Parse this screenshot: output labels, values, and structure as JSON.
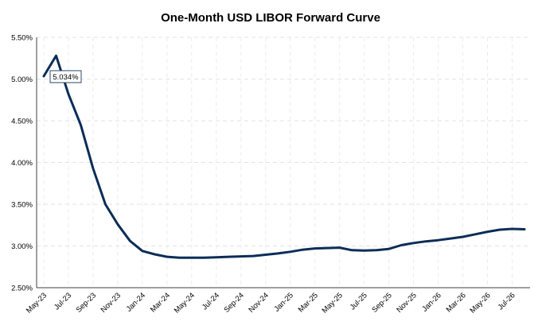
{
  "chart_data": {
    "type": "line",
    "title": "One-Month USD LIBOR Forward Curve",
    "xlabel": "",
    "ylabel": "",
    "ylim": [
      2.5,
      5.5
    ],
    "yticks": [
      "2.50%",
      "3.00%",
      "3.50%",
      "4.00%",
      "4.50%",
      "5.00%",
      "5.50%"
    ],
    "ytick_values": [
      2.5,
      3.0,
      3.5,
      4.0,
      4.5,
      5.0,
      5.5
    ],
    "x_tick_labels": [
      "May-23",
      "Jul-23",
      "Sep-23",
      "Nov-23",
      "Jan-24",
      "Mar-24",
      "May-24",
      "Jul-24",
      "Sep-24",
      "Nov-24",
      "Jan-25",
      "Mar-25",
      "May-25",
      "Jul-25",
      "Sep-25",
      "Nov-25",
      "Jan-26",
      "Mar-26",
      "May-26",
      "Jul-26"
    ],
    "grid": true,
    "line_color": "#0b2d57",
    "annotation": {
      "label": "5.034%",
      "month": "May-23",
      "value": 5.034
    },
    "series": [
      {
        "x": [
          "May-23",
          "Jun-23",
          "Jul-23",
          "Aug-23",
          "Sep-23",
          "Oct-23",
          "Nov-23",
          "Dec-23",
          "Jan-24",
          "Feb-24",
          "Mar-24",
          "Apr-24",
          "May-24",
          "Jun-24",
          "Jul-24",
          "Aug-24",
          "Sep-24",
          "Oct-24",
          "Nov-24",
          "Dec-24",
          "Jan-25",
          "Feb-25",
          "Mar-25",
          "Apr-25",
          "May-25",
          "Jun-25",
          "Jul-25",
          "Aug-25",
          "Sep-25",
          "Oct-25",
          "Nov-25",
          "Dec-25",
          "Jan-26",
          "Feb-26",
          "Mar-26",
          "Apr-26",
          "May-26",
          "Jun-26",
          "Jul-26",
          "Aug-26"
        ],
        "values": [
          5.034,
          5.28,
          4.82,
          4.45,
          3.93,
          3.5,
          3.26,
          3.06,
          2.94,
          2.9,
          2.87,
          2.86,
          2.86,
          2.86,
          2.865,
          2.87,
          2.875,
          2.88,
          2.895,
          2.91,
          2.93,
          2.955,
          2.97,
          2.975,
          2.98,
          2.95,
          2.945,
          2.95,
          2.965,
          3.01,
          3.035,
          3.055,
          3.07,
          3.09,
          3.11,
          3.14,
          3.17,
          3.195,
          3.205,
          3.2
        ]
      }
    ]
  }
}
